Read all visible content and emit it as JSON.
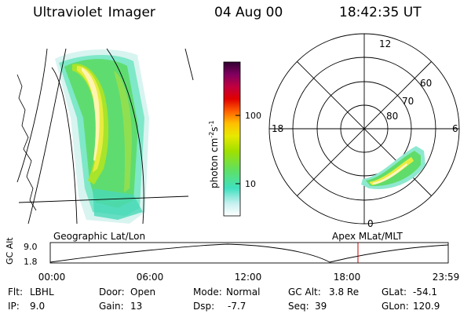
{
  "header": {
    "instrument": "Ultraviolet Imager",
    "date": "04 Aug 00",
    "time": "18:42:35 UT"
  },
  "geographic_panel": {
    "label": "Geographic Lat/Lon"
  },
  "colorbar": {
    "unit_label": "photon cm",
    "unit_exp1": "-2",
    "unit_mid": "s",
    "unit_exp2": "-1",
    "tick_100": "100",
    "tick_10": "10",
    "colors": [
      "#ffffff",
      "#c8f0f0",
      "#40e0c0",
      "#60e060",
      "#a0e000",
      "#e8e800",
      "#ffc000",
      "#ff6000",
      "#e00000",
      "#c00040",
      "#800060",
      "#300030"
    ]
  },
  "polar_panel": {
    "label": "Apex MLat/MLT",
    "mlt_12": "12",
    "mlt_18": "18",
    "mlt_6": "6",
    "mlt_0": "0",
    "lat_60": "60",
    "lat_70": "70",
    "lat_80": "80"
  },
  "altitude_plot": {
    "axis_label": "GC Alt",
    "y_top": "9.0",
    "y_bottom": "1.8",
    "x_ticks": [
      "00:00",
      "06:00",
      "12:00",
      "18:00",
      "23:59"
    ],
    "marker_color": "#c00000"
  },
  "footer": {
    "flt_key": "Flt:",
    "flt_val": "LBHL",
    "ip_key": "IP:",
    "ip_val": "9.0",
    "door_key": "Door:",
    "door_val": "Open",
    "gain_key": "Gain:",
    "gain_val": "13",
    "mode_key": "Mode:",
    "mode_val": "Normal",
    "dsp_key": "Dsp:",
    "dsp_val": "-7.7",
    "gcalt_key": "GC Alt:",
    "gcalt_val": "3.8 Re",
    "seq_key": "Seq:",
    "seq_val": "39",
    "glat_key": "GLat:",
    "glat_val": "-54.1",
    "glon_key": "GLon:",
    "glon_val": "120.9"
  }
}
